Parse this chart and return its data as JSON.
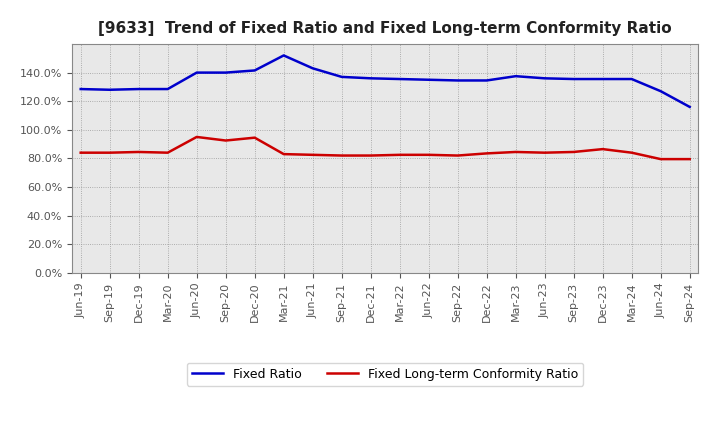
{
  "title": "[9633]  Trend of Fixed Ratio and Fixed Long-term Conformity Ratio",
  "x_labels": [
    "Jun-19",
    "Sep-19",
    "Dec-19",
    "Mar-20",
    "Jun-20",
    "Sep-20",
    "Dec-20",
    "Mar-21",
    "Jun-21",
    "Sep-21",
    "Dec-21",
    "Mar-22",
    "Jun-22",
    "Sep-22",
    "Dec-22",
    "Mar-23",
    "Jun-23",
    "Sep-23",
    "Dec-23",
    "Mar-24",
    "Jun-24",
    "Sep-24"
  ],
  "fixed_ratio": [
    128.5,
    128.0,
    128.5,
    128.5,
    140.0,
    140.0,
    141.5,
    152.0,
    143.0,
    137.0,
    136.0,
    135.5,
    135.0,
    134.5,
    134.5,
    137.5,
    136.0,
    135.5,
    135.5,
    135.5,
    127.0,
    116.0
  ],
  "fixed_lt_ratio": [
    84.0,
    84.0,
    84.5,
    84.0,
    95.0,
    92.5,
    94.5,
    83.0,
    82.5,
    82.0,
    82.0,
    82.5,
    82.5,
    82.0,
    83.5,
    84.5,
    84.0,
    84.5,
    86.5,
    84.0,
    79.5,
    79.5
  ],
  "fixed_ratio_color": "#0000CC",
  "fixed_lt_ratio_color": "#CC0000",
  "legend_fixed": "Fixed Ratio",
  "legend_fixed_lt": "Fixed Long-term Conformity Ratio",
  "ylim": [
    0,
    160
  ],
  "yticks": [
    0,
    20,
    40,
    60,
    80,
    100,
    120,
    140
  ],
  "bg_color": "#FFFFFF",
  "plot_bg_color": "#E8E8E8",
  "grid_color": "#999999",
  "title_fontsize": 11,
  "tick_fontsize": 8,
  "line_width": 1.8
}
